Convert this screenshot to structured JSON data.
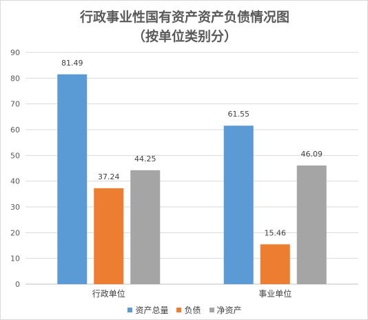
{
  "chart_data": {
    "type": "bar",
    "title_line1": "行政事业性国有资产资产负债情况图",
    "title_line2": "（按单位类别分）",
    "categories": [
      "行政单位",
      "事业单位"
    ],
    "series": [
      {
        "name": "资产总量",
        "color": "#5B9BD5",
        "values": [
          81.49,
          61.55
        ],
        "labels": [
          "81.49",
          "61.55"
        ]
      },
      {
        "name": "负债",
        "color": "#ED7D31",
        "values": [
          37.24,
          15.46
        ],
        "labels": [
          "37.24",
          "15.46"
        ]
      },
      {
        "name": "净资产",
        "color": "#A5A5A5",
        "values": [
          44.25,
          46.09
        ],
        "labels": [
          "44.25",
          "46.09"
        ]
      }
    ],
    "ylim": [
      0,
      90
    ],
    "yticks": [
      "0",
      "10",
      "20",
      "30",
      "40",
      "50",
      "60",
      "70",
      "80",
      "90"
    ],
    "grid": true,
    "legend_position": "bottom"
  }
}
